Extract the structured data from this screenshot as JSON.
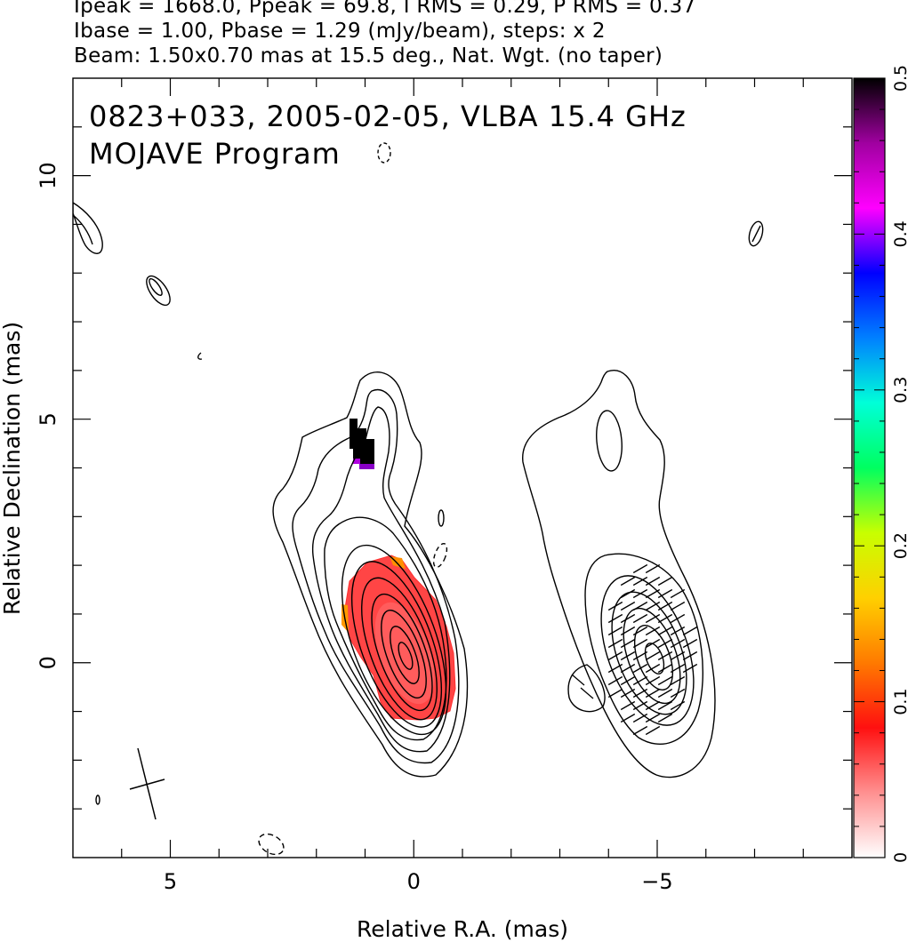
{
  "header": {
    "line1": "Ipeak = 1668.0, Ppeak = 69.8, I RMS = 0.29, P RMS = 0.37",
    "line2": "Ibase = 1.00, Pbase = 1.29 (mJy/beam), steps: x 2",
    "line3": "Beam: 1.50x0.70 mas at 15.5 deg., Nat. Wgt. (no taper)"
  },
  "chart_data": {
    "type": "heatmap",
    "title": "0823+033, 2005-02-05, VLBA 15.4 GHz",
    "subtitle": "MOJAVE Program",
    "xlabel": "Relative R.A. (mas)",
    "ylabel": "Relative Declination (mas)",
    "xlim": [
      7,
      -9
    ],
    "ylim": [
      -4,
      12
    ],
    "x_ticks": [
      5,
      0,
      -5
    ],
    "x_tick_labels": [
      "5",
      "0",
      "−5"
    ],
    "y_ticks": [
      0,
      5,
      10
    ],
    "y_tick_labels": [
      "0",
      "5",
      "10"
    ],
    "colorbar": {
      "range": [
        0,
        0.5
      ],
      "ticks": [
        0,
        0.1,
        0.2,
        0.3,
        0.4,
        0.5
      ],
      "tick_labels": [
        "0",
        "0.1",
        "0.2",
        "0.3",
        "0.4",
        "0.5"
      ],
      "stops": [
        "#ffffff",
        "#ff9090",
        "#ff1010",
        "#ff7a00",
        "#ffd000",
        "#c8ff00",
        "#00ff60",
        "#00ffd8",
        "#0080ff",
        "#0000ff",
        "#ff00ff",
        "#a000a0",
        "#000000"
      ]
    },
    "beam": {
      "major_mas": 1.5,
      "minor_mas": 0.7,
      "pa_deg": 15.5,
      "center": [
        5.2,
        -2.4
      ]
    },
    "core": {
      "center": [
        0,
        0
      ],
      "peak_mJy_per_beam": 1668.0
    },
    "contour_levels_mJy_per_beam": [
      1,
      2,
      4,
      8,
      16,
      32,
      64,
      128,
      256,
      512,
      1024
    ],
    "fractional_polarization_regions": [
      {
        "region": "core",
        "center": [
          0,
          0.3
        ],
        "value": 0.05
      },
      {
        "region": "jet knot",
        "center": [
          0.8,
          4.4
        ],
        "value": 0.5
      }
    ],
    "right_panel_peak": [
      -5,
      0.3
    ]
  }
}
